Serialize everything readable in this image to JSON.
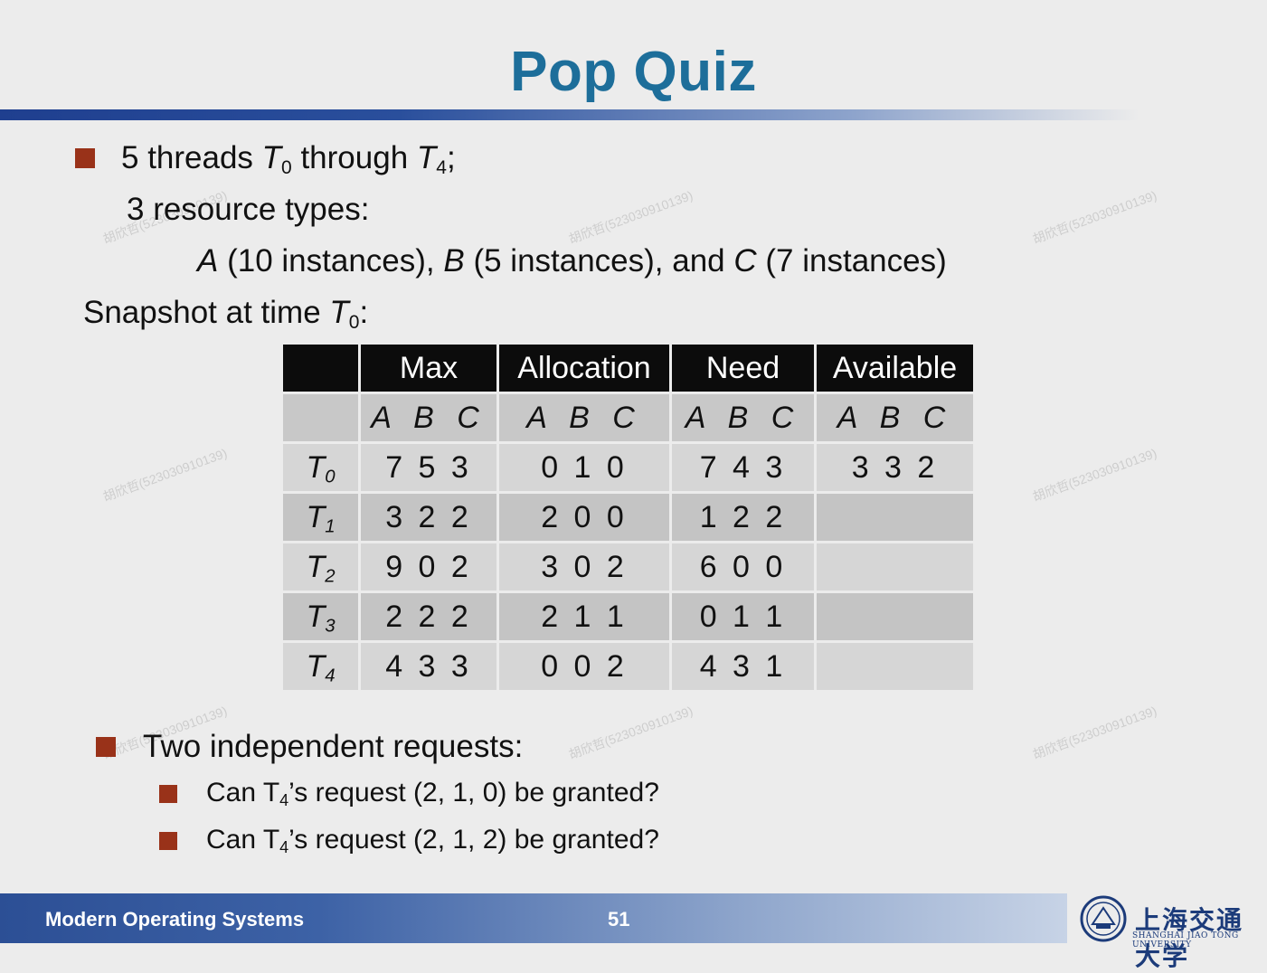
{
  "title": "Pop Quiz",
  "intro": {
    "line1_prefix": "5 threads ",
    "line1_t": "T",
    "line1_t_sub": "0",
    "line1_mid": " through ",
    "line1_t2": "T",
    "line1_t2_sub": "4",
    "line1_end": ";",
    "line2": "3 resource types:",
    "line3_a": "A",
    "line3_a_text": " (10 instances),  ",
    "line3_b": "B",
    "line3_b_text": " (5 instances), and ",
    "line3_c": "C",
    "line3_c_text": " (7 instances)",
    "snapshot_prefix": "Snapshot at time ",
    "snapshot_t": "T",
    "snapshot_sub": "0",
    "snapshot_end": ":"
  },
  "table": {
    "headers": [
      "",
      "Max",
      "Allocation",
      "Need",
      "Available"
    ],
    "subheaders": [
      "",
      "A B C",
      "A B C",
      "A B C",
      "A B C"
    ],
    "rows": [
      {
        "t": "T",
        "sub": "0",
        "max": "7 5 3",
        "alloc": "0 1 0",
        "need": "7 4 3",
        "avail": "3 3 2"
      },
      {
        "t": "T",
        "sub": "1",
        "max": "3 2 2",
        "alloc": "2 0 0",
        "need": "1 2 2",
        "avail": ""
      },
      {
        "t": "T",
        "sub": "2",
        "max": "9 0 2",
        "alloc": "3 0 2",
        "need": "6 0 0",
        "avail": ""
      },
      {
        "t": "T",
        "sub": "3",
        "max": "2 2 2",
        "alloc": "2 1 1",
        "need": "0 1 1",
        "avail": ""
      },
      {
        "t": "T",
        "sub": "4",
        "max": "4 3 3",
        "alloc": "0 0 2",
        "need": "4 3 1",
        "avail": ""
      }
    ]
  },
  "requests": {
    "heading": "Two independent requests:",
    "q1_prefix": "Can T",
    "q1_sub": "4",
    "q1_text": "’s request (2, 1, 0) be granted?",
    "q2_prefix": "Can T",
    "q2_sub": "4",
    "q2_text": "’s request (2, 1, 2) be granted?"
  },
  "footer": {
    "course": "Modern Operating Systems",
    "page": "51",
    "university_cn": "上海交通大学",
    "university_en": "SHANGHAI JIAO TONG UNIVERSITY"
  },
  "watermark": "胡欣哲(523030910139)",
  "colors": {
    "title": "#1d6e9a",
    "bullet": "#993219",
    "header_bg": "#0c0c0c"
  }
}
